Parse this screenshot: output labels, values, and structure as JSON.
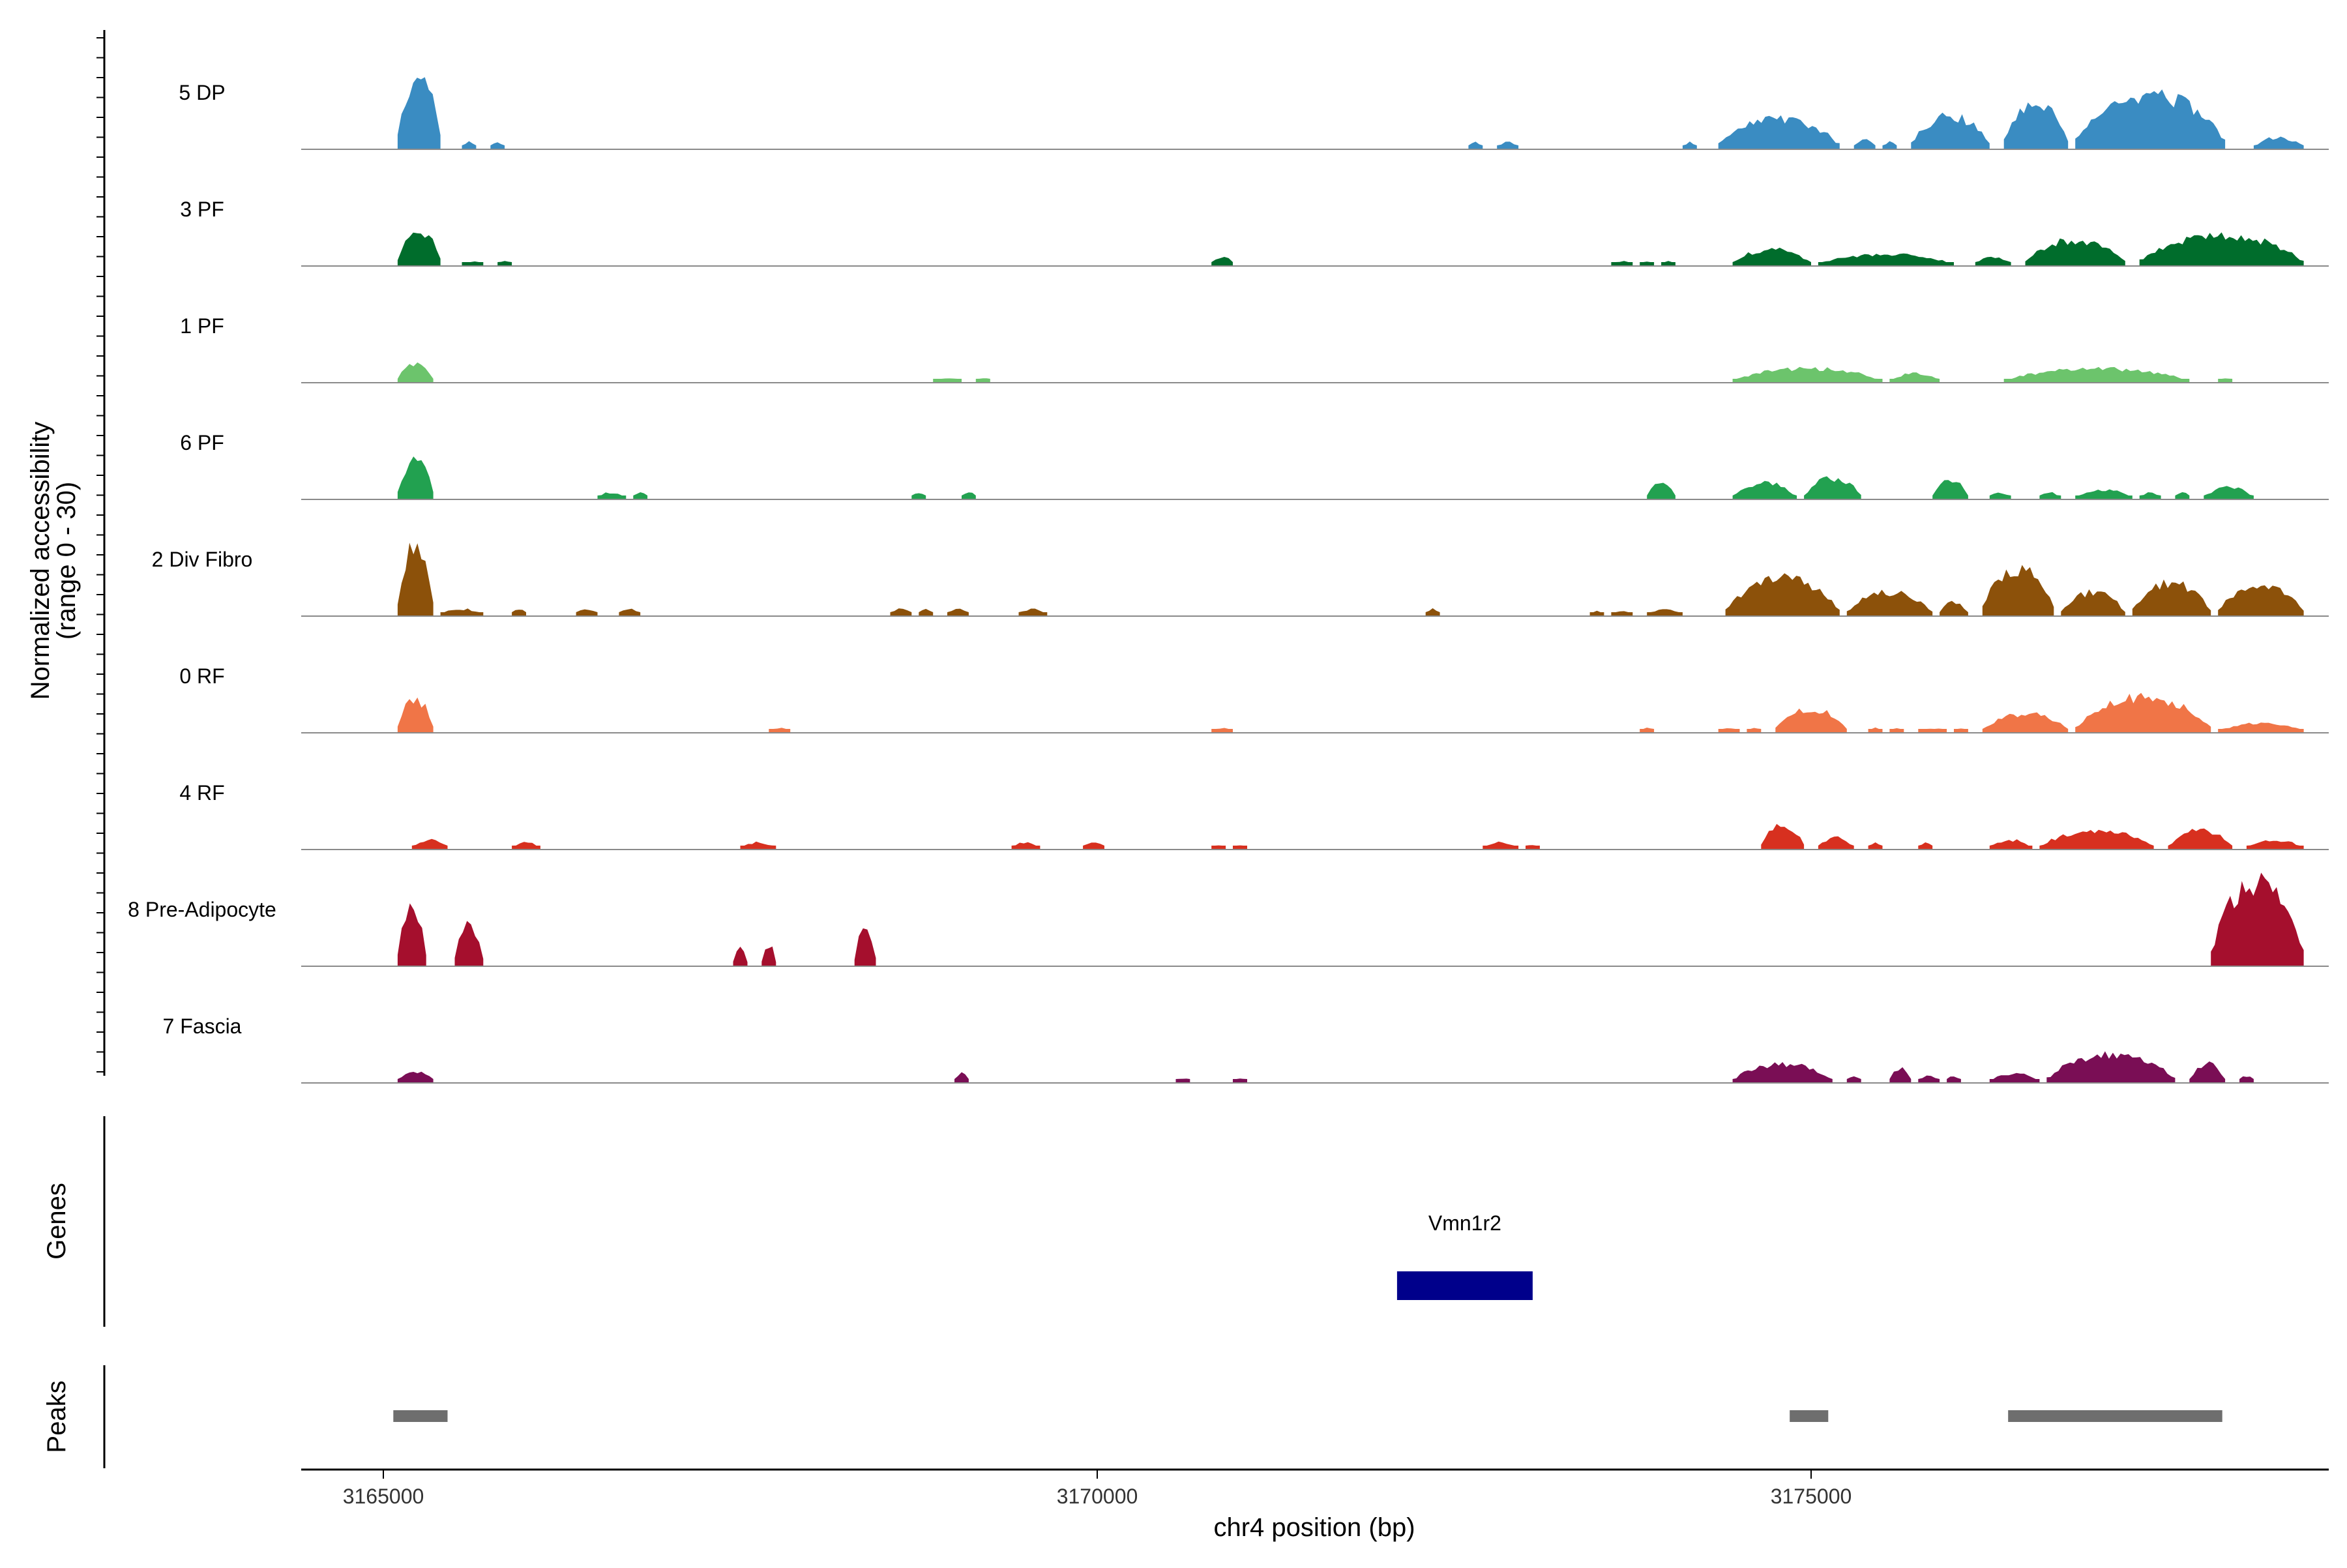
{
  "chart_data": {
    "type": "area",
    "title": "",
    "ylabel_line1": "Normalized accessibility",
    "ylabel_line2": "(range 0 - 30)",
    "xlabel": "chr4 position (bp)",
    "xlim": [
      3164450,
      3178700
    ],
    "y_range": [
      0,
      30
    ],
    "x_ticks": [
      {
        "value": 3165000,
        "label": "3165000"
      },
      {
        "value": 3170000,
        "label": "3170000"
      },
      {
        "value": 3175000,
        "label": "3175000"
      }
    ],
    "tracks": [
      {
        "name": "5 DP",
        "color": "#3a8cc2",
        "regions": [
          [
            3165100,
            3165400,
            30
          ],
          [
            3165550,
            3165650,
            3
          ],
          [
            3165750,
            3165850,
            3
          ],
          [
            3172600,
            3172700,
            3
          ],
          [
            3172800,
            3172950,
            3
          ],
          [
            3174100,
            3174200,
            3
          ],
          [
            3174350,
            3175200,
            13
          ],
          [
            3175300,
            3175450,
            4
          ],
          [
            3175500,
            3175600,
            3
          ],
          [
            3175700,
            3176250,
            14
          ],
          [
            3176350,
            3176800,
            20
          ],
          [
            3176850,
            3177900,
            23
          ],
          [
            3178100,
            3178450,
            5
          ]
        ]
      },
      {
        "name": "3 PF",
        "color": "#006d2c",
        "regions": [
          [
            3165100,
            3165400,
            15
          ],
          [
            3165550,
            3165700,
            2
          ],
          [
            3165800,
            3165900,
            2
          ],
          [
            3170800,
            3170950,
            4
          ],
          [
            3173600,
            3173750,
            2
          ],
          [
            3173800,
            3173900,
            2
          ],
          [
            3173950,
            3174050,
            2
          ],
          [
            3174450,
            3175000,
            7
          ],
          [
            3175050,
            3176000,
            5
          ],
          [
            3176150,
            3176400,
            4
          ],
          [
            3176500,
            3177200,
            11
          ],
          [
            3177300,
            3178450,
            13
          ]
        ]
      },
      {
        "name": "1 PF",
        "color": "#6cc46c",
        "regions": [
          [
            3165100,
            3165350,
            8
          ],
          [
            3168850,
            3169050,
            2
          ],
          [
            3169150,
            3169250,
            2
          ],
          [
            3174450,
            3175500,
            6
          ],
          [
            3175550,
            3175900,
            4
          ],
          [
            3176350,
            3177650,
            6
          ],
          [
            3177850,
            3177950,
            2
          ]
        ]
      },
      {
        "name": "6 PF",
        "color": "#22a150",
        "regions": [
          [
            3165100,
            3165350,
            16
          ],
          [
            3166500,
            3166700,
            3
          ],
          [
            3166750,
            3166850,
            3
          ],
          [
            3168700,
            3168800,
            3
          ],
          [
            3169050,
            3169150,
            3
          ],
          [
            3173850,
            3174050,
            8
          ],
          [
            3174450,
            3174900,
            7
          ],
          [
            3174950,
            3175350,
            9
          ],
          [
            3175850,
            3176100,
            8
          ],
          [
            3176250,
            3176400,
            3
          ],
          [
            3176600,
            3176750,
            3
          ],
          [
            3176850,
            3177250,
            4
          ],
          [
            3177300,
            3177450,
            3
          ],
          [
            3177550,
            3177650,
            3
          ],
          [
            3177750,
            3178100,
            5
          ]
        ]
      },
      {
        "name": "2 Div Fibro",
        "color": "#8c510a",
        "regions": [
          [
            3165100,
            3165350,
            30
          ],
          [
            3165400,
            3165700,
            3
          ],
          [
            3165900,
            3166000,
            3
          ],
          [
            3166350,
            3166500,
            3
          ],
          [
            3166650,
            3166800,
            3
          ],
          [
            3168550,
            3168700,
            3
          ],
          [
            3168750,
            3168850,
            3
          ],
          [
            3168950,
            3169100,
            3
          ],
          [
            3169450,
            3169650,
            3
          ],
          [
            3172300,
            3172400,
            3
          ],
          [
            3173450,
            3173550,
            2
          ],
          [
            3173600,
            3173750,
            2
          ],
          [
            3173850,
            3174100,
            3
          ],
          [
            3174400,
            3175200,
            16
          ],
          [
            3175250,
            3175850,
            10
          ],
          [
            3175900,
            3176100,
            6
          ],
          [
            3176200,
            3176700,
            20
          ],
          [
            3176750,
            3177200,
            10
          ],
          [
            3177250,
            3177800,
            14
          ],
          [
            3177850,
            3178450,
            13
          ]
        ]
      },
      {
        "name": "0 RF",
        "color": "#f07547",
        "regions": [
          [
            3165100,
            3165350,
            14
          ],
          [
            3167700,
            3167850,
            2
          ],
          [
            3170800,
            3170950,
            2
          ],
          [
            3173800,
            3173900,
            2
          ],
          [
            3174350,
            3174500,
            2
          ],
          [
            3174550,
            3174650,
            2
          ],
          [
            3174750,
            3175250,
            10
          ],
          [
            3175400,
            3175500,
            2
          ],
          [
            3175550,
            3175650,
            2
          ],
          [
            3175750,
            3175950,
            2
          ],
          [
            3176000,
            3176100,
            2
          ],
          [
            3176200,
            3176800,
            8
          ],
          [
            3176850,
            3177800,
            15
          ],
          [
            3177850,
            3178450,
            4
          ]
        ]
      },
      {
        "name": "4 RF",
        "color": "#d7301f",
        "regions": [
          [
            3165200,
            3165450,
            4
          ],
          [
            3165900,
            3166100,
            3
          ],
          [
            3167500,
            3167750,
            3
          ],
          [
            3169400,
            3169600,
            3
          ],
          [
            3169900,
            3170050,
            3
          ],
          [
            3170800,
            3170900,
            2
          ],
          [
            3170950,
            3171050,
            2
          ],
          [
            3172700,
            3172950,
            3
          ],
          [
            3173000,
            3173100,
            2
          ],
          [
            3174650,
            3174950,
            10
          ],
          [
            3175050,
            3175300,
            5
          ],
          [
            3175400,
            3175500,
            3
          ],
          [
            3175750,
            3175850,
            3
          ],
          [
            3176250,
            3176550,
            4
          ],
          [
            3176600,
            3177400,
            8
          ],
          [
            3177500,
            3177950,
            8
          ],
          [
            3178050,
            3178450,
            4
          ]
        ]
      },
      {
        "name": "8 Pre-Adipocyte",
        "color": "#a50f2d",
        "regions": [
          [
            3165100,
            3165300,
            26
          ],
          [
            3165500,
            3165700,
            17
          ],
          [
            3167450,
            3167550,
            9
          ],
          [
            3167650,
            3167750,
            9
          ],
          [
            3168300,
            3168450,
            17
          ],
          [
            3177800,
            3178450,
            35
          ]
        ]
      },
      {
        "name": "7 Fascia",
        "color": "#7a0e55",
        "regions": [
          [
            3165100,
            3165350,
            5
          ],
          [
            3169000,
            3169100,
            4
          ],
          [
            3170550,
            3170650,
            2
          ],
          [
            3170950,
            3171050,
            2
          ],
          [
            3174450,
            3175150,
            8
          ],
          [
            3175250,
            3175350,
            3
          ],
          [
            3175550,
            3175700,
            6
          ],
          [
            3175750,
            3175900,
            3
          ],
          [
            3175950,
            3176050,
            3
          ],
          [
            3176250,
            3176600,
            4
          ],
          [
            3176650,
            3177550,
            12
          ],
          [
            3177650,
            3177900,
            8
          ],
          [
            3178000,
            3178100,
            3
          ]
        ]
      }
    ],
    "genes_label": "Genes",
    "genes": [
      {
        "name": "Vmn1r2",
        "start": 3172100,
        "end": 3173050,
        "color": "#00008b"
      }
    ],
    "peaks_label": "Peaks",
    "peaks_color": "#6e6e6e",
    "peaks": [
      {
        "start": 3165070,
        "end": 3165450
      },
      {
        "start": 3174850,
        "end": 3175120
      },
      {
        "start": 3176380,
        "end": 3177880
      }
    ],
    "grid": false
  }
}
